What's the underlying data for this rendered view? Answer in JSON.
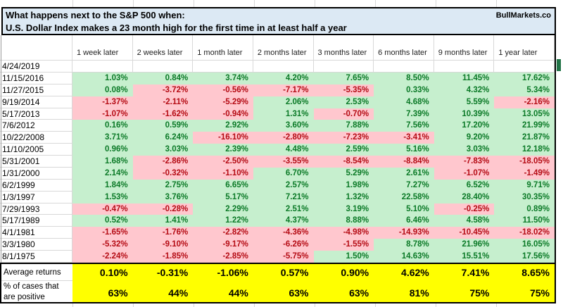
{
  "title": {
    "line1": "What happens next to the S&P 500 when:",
    "line2": "U.S. Dollar Index makes a 23 month high for the first time in at least half a year",
    "brand": "BullMarkets.co"
  },
  "table": {
    "columns": [
      "1 week later",
      "2 weeks later",
      "1 month later",
      "2 months later",
      "3 months later",
      "6 months later",
      "9 months later",
      "1 year later"
    ],
    "rows": [
      {
        "date": "4/24/2019",
        "values": [
          null,
          null,
          null,
          null,
          null,
          null,
          null,
          null
        ]
      },
      {
        "date": "11/15/2016",
        "values": [
          "1.03%",
          "0.84%",
          "3.74%",
          "4.20%",
          "7.65%",
          "8.50%",
          "11.45%",
          "17.62%"
        ]
      },
      {
        "date": "11/27/2015",
        "values": [
          "0.08%",
          "-3.72%",
          "-0.56%",
          "-7.17%",
          "-5.35%",
          "0.33%",
          "4.32%",
          "5.34%"
        ]
      },
      {
        "date": "9/19/2014",
        "values": [
          "-1.37%",
          "-2.11%",
          "-5.29%",
          "2.06%",
          "2.53%",
          "4.68%",
          "5.59%",
          "-2.16%"
        ]
      },
      {
        "date": "5/17/2013",
        "values": [
          "-1.07%",
          "-1.62%",
          "-0.94%",
          "1.31%",
          "-0.70%",
          "7.39%",
          "10.39%",
          "13.05%"
        ]
      },
      {
        "date": "7/6/2012",
        "values": [
          "0.16%",
          "0.59%",
          "2.92%",
          "3.60%",
          "7.88%",
          "7.56%",
          "17.20%",
          "21.99%"
        ]
      },
      {
        "date": "10/22/2008",
        "values": [
          "3.71%",
          "6.24%",
          "-16.10%",
          "-2.80%",
          "-7.23%",
          "-3.41%",
          "9.20%",
          "21.87%"
        ]
      },
      {
        "date": "11/10/2005",
        "values": [
          "0.96%",
          "3.03%",
          "2.39%",
          "4.48%",
          "2.59%",
          "5.16%",
          "3.03%",
          "12.18%"
        ]
      },
      {
        "date": "5/31/2001",
        "values": [
          "1.68%",
          "-2.86%",
          "-2.50%",
          "-3.55%",
          "-8.54%",
          "-8.84%",
          "-7.83%",
          "-18.05%"
        ]
      },
      {
        "date": "1/31/2000",
        "values": [
          "2.14%",
          "-0.32%",
          "-1.10%",
          "6.70%",
          "5.29%",
          "2.61%",
          "-1.07%",
          "-1.49%"
        ]
      },
      {
        "date": "6/2/1999",
        "values": [
          "1.84%",
          "2.75%",
          "6.65%",
          "2.57%",
          "1.98%",
          "7.27%",
          "6.52%",
          "9.71%"
        ]
      },
      {
        "date": "1/3/1997",
        "values": [
          "1.53%",
          "3.76%",
          "5.17%",
          "7.21%",
          "1.32%",
          "22.58%",
          "28.40%",
          "30.35%"
        ]
      },
      {
        "date": "7/29/1993",
        "values": [
          "-0.47%",
          "-0.28%",
          "2.29%",
          "2.51%",
          "3.19%",
          "5.10%",
          "-0.25%",
          "0.89%"
        ]
      },
      {
        "date": "5/17/1989",
        "values": [
          "0.52%",
          "1.41%",
          "1.22%",
          "4.37%",
          "8.88%",
          "6.46%",
          "4.58%",
          "11.50%"
        ]
      },
      {
        "date": "4/1/1981",
        "values": [
          "-1.65%",
          "-1.76%",
          "-2.82%",
          "-4.36%",
          "-4.98%",
          "-14.93%",
          "-10.45%",
          "-18.02%"
        ]
      },
      {
        "date": "3/3/1980",
        "values": [
          "-5.32%",
          "-9.10%",
          "-9.17%",
          "-6.26%",
          "-1.55%",
          "8.78%",
          "21.96%",
          "16.05%"
        ]
      },
      {
        "date": "8/1/1975",
        "values": [
          "-2.24%",
          "-1.85%",
          "-2.85%",
          "-5.75%",
          "1.50%",
          "14.63%",
          "15.51%",
          "17.56%"
        ]
      }
    ],
    "summary": {
      "avg_label": "Average returns",
      "avg": [
        "0.10%",
        "-0.31%",
        "-1.06%",
        "0.57%",
        "0.90%",
        "4.62%",
        "7.41%",
        "8.65%"
      ],
      "pct_label_line1": "% of cases that",
      "pct_label_line2": "are positive",
      "pct": [
        "63%",
        "44%",
        "44%",
        "63%",
        "63%",
        "81%",
        "75%",
        "75%"
      ]
    }
  },
  "colors": {
    "title_bg": "#DCE9F4",
    "positive_bg": "#C6EFCE",
    "positive_text": "#0B7A27",
    "negative_bg": "#FFC7CE",
    "negative_text": "#B50B14",
    "summary_bg": "#FFFF00",
    "grid_line": "#D8D8D8",
    "border_black": "#000000",
    "marker_green": "#217346"
  }
}
